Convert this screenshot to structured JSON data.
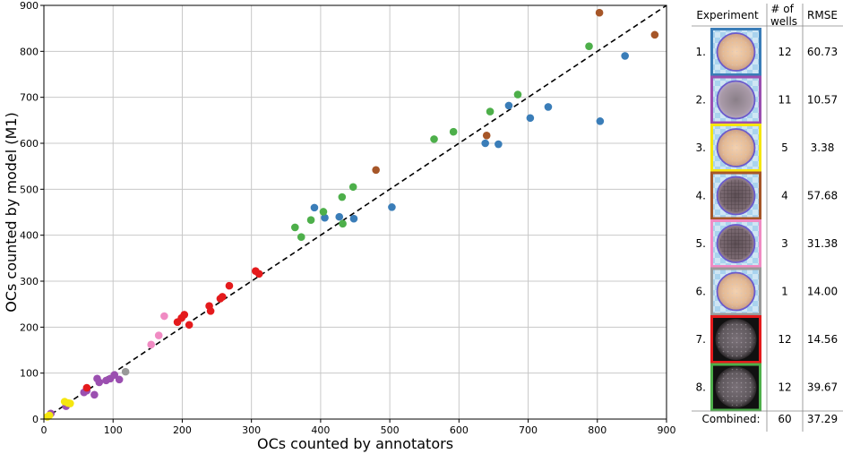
{
  "chart_data": {
    "type": "scatter",
    "xlabel": "OCs counted by annotators",
    "ylabel": "OCs counted by model (M1)",
    "xlim": [
      0,
      900
    ],
    "ylim": [
      0,
      900
    ],
    "xticks": [
      0,
      100,
      200,
      300,
      400,
      500,
      600,
      700,
      800,
      900
    ],
    "yticks": [
      0,
      100,
      200,
      300,
      400,
      500,
      600,
      700,
      800,
      900
    ],
    "grid": true,
    "reference_line": {
      "style": "dashed",
      "color": "#000000",
      "from": [
        0,
        0
      ],
      "to": [
        900,
        900
      ]
    },
    "series": [
      {
        "experiment": "1.",
        "color": "#3a7db8",
        "points": [
          [
            391,
            460
          ],
          [
            406,
            438
          ],
          [
            427,
            440
          ],
          [
            448,
            436
          ],
          [
            503,
            461
          ],
          [
            638,
            600
          ],
          [
            657,
            598
          ],
          [
            672,
            682
          ],
          [
            703,
            655
          ],
          [
            729,
            679
          ],
          [
            804,
            648
          ],
          [
            840,
            790
          ]
        ]
      },
      {
        "experiment": "2.",
        "color": "#9b4fb0",
        "points": [
          [
            10,
            12
          ],
          [
            58,
            58
          ],
          [
            73,
            53
          ],
          [
            77,
            88
          ],
          [
            90,
            84
          ],
          [
            96,
            88
          ],
          [
            102,
            96
          ],
          [
            109,
            86
          ],
          [
            32,
            28
          ],
          [
            62,
            62
          ],
          [
            80,
            80
          ]
        ]
      },
      {
        "experiment": "3.",
        "color": "#f5e60f",
        "points": [
          [
            5,
            5
          ],
          [
            30,
            38
          ],
          [
            35,
            35
          ],
          [
            38,
            34
          ],
          [
            8,
            8
          ]
        ]
      },
      {
        "experiment": "4.",
        "color": "#a65628",
        "points": [
          [
            480,
            542
          ],
          [
            640,
            617
          ],
          [
            803,
            884
          ],
          [
            883,
            836
          ]
        ]
      },
      {
        "experiment": "5.",
        "color": "#f08bc3",
        "points": [
          [
            155,
            162
          ],
          [
            166,
            182
          ],
          [
            174,
            224
          ]
        ]
      },
      {
        "experiment": "6.",
        "color": "#999999",
        "points": [
          [
            118,
            103
          ]
        ]
      },
      {
        "experiment": "7.",
        "color": "#e41a1c",
        "points": [
          [
            62,
            68
          ],
          [
            193,
            211
          ],
          [
            199,
            220
          ],
          [
            203,
            227
          ],
          [
            210,
            205
          ],
          [
            239,
            246
          ],
          [
            241,
            235
          ],
          [
            255,
            262
          ],
          [
            258,
            266
          ],
          [
            268,
            290
          ],
          [
            306,
            322
          ],
          [
            311,
            316
          ]
        ]
      },
      {
        "experiment": "8.",
        "color": "#4daf4a",
        "points": [
          [
            363,
            417
          ],
          [
            372,
            396
          ],
          [
            386,
            433
          ],
          [
            404,
            451
          ],
          [
            431,
            483
          ],
          [
            432,
            425
          ],
          [
            447,
            505
          ],
          [
            564,
            609
          ],
          [
            592,
            625
          ],
          [
            645,
            669
          ],
          [
            685,
            706
          ],
          [
            788,
            811
          ]
        ]
      }
    ]
  },
  "legend_table": {
    "headers": {
      "experiment": "Experiment",
      "wells": "# of\nwells",
      "rmse": "RMSE"
    },
    "rows": [
      {
        "label": "1.",
        "wells": "12",
        "rmse": "60.73",
        "frame_color": "#3a7db8",
        "image": "light"
      },
      {
        "label": "2.",
        "wells": "11",
        "rmse": "10.57",
        "frame_color": "#9b4fb0",
        "image": "blue-grey"
      },
      {
        "label": "3.",
        "wells": "5",
        "rmse": "3.38",
        "frame_color": "#f5e60f",
        "image": "light"
      },
      {
        "label": "4.",
        "wells": "4",
        "rmse": "57.68",
        "frame_color": "#a65628",
        "image": "dark-grid"
      },
      {
        "label": "5.",
        "wells": "3",
        "rmse": "31.38",
        "frame_color": "#f08bc3",
        "image": "dark-grid"
      },
      {
        "label": "6.",
        "wells": "1",
        "rmse": "14.00",
        "frame_color": "#999999",
        "image": "light"
      },
      {
        "label": "7.",
        "wells": "12",
        "rmse": "14.56",
        "frame_color": "#e41a1c",
        "image": "dark"
      },
      {
        "label": "8.",
        "wells": "12",
        "rmse": "39.67",
        "frame_color": "#4daf4a",
        "image": "dark"
      }
    ],
    "combined": {
      "label": "Combined:",
      "wells": "60",
      "rmse": "37.29"
    }
  }
}
